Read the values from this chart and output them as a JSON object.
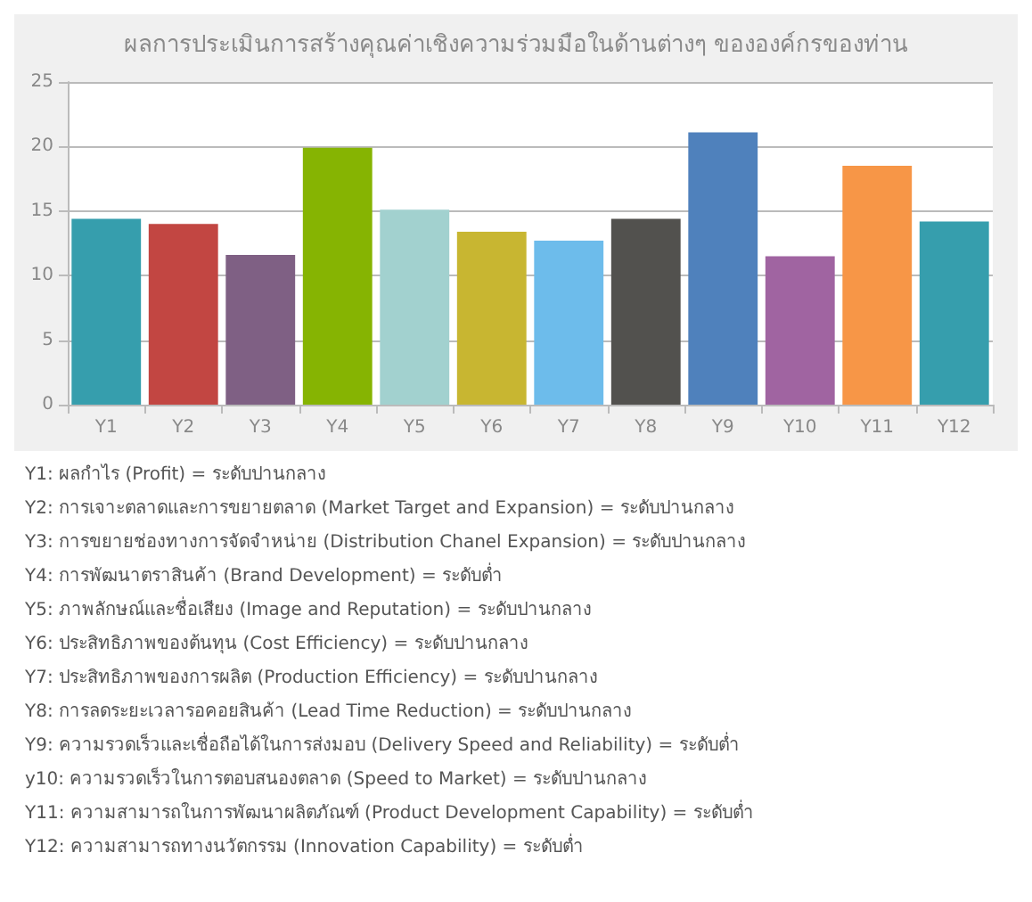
{
  "chart_data": {
    "type": "bar",
    "title": "ผลการประเมินการสร้างคุณค่าเชิงความร่วมมือในด้านต่างๆ ขององค์กรของท่าน",
    "categories": [
      "Y1",
      "Y2",
      "Y3",
      "Y4",
      "Y5",
      "Y6",
      "Y7",
      "Y8",
      "Y9",
      "Y10",
      "Y11",
      "Y12"
    ],
    "values": [
      14.4,
      14.0,
      11.6,
      19.9,
      15.1,
      13.4,
      12.7,
      14.4,
      21.1,
      11.5,
      18.5,
      14.2
    ],
    "colors": [
      "#369ead",
      "#c24642",
      "#7f6084",
      "#86b402",
      "#a2d1cf",
      "#c8b631",
      "#6dbceb",
      "#52514e",
      "#4f81bc",
      "#a064a1",
      "#f79647",
      "#369ead"
    ],
    "ylim": [
      0,
      25
    ],
    "yticks": [
      0,
      5,
      10,
      15,
      20,
      25
    ],
    "grid": "y",
    "annotations": [
      "Y1: ผลกำไร (Profit) = ระดับปานกลาง",
      "Y2: การเจาะตลาดและการขยายตลาด (Market Target and Expansion) = ระดับปานกลาง",
      "Y3: การขยายช่องทางการจัดจำหน่าย (Distribution Chanel Expansion) = ระดับปานกลาง",
      "Y4: การพัฒนาตราสินค้า (Brand Development) = ระดับต่ำ",
      "Y5: ภาพลักษณ์และชื่อเสียง (Image and Reputation) = ระดับปานกลาง",
      "Y6: ประสิทธิภาพของต้นทุน (Cost Efficiency) = ระดับปานกลาง",
      "Y7: ประสิทธิภาพของการผลิต (Production Efficiency) = ระดับปานกลาง",
      "Y8: การลดระยะเวลารอคอยสินค้า (Lead Time Reduction) = ระดับปานกลาง",
      "Y9: ความรวดเร็วและเชื่อถือได้ในการส่งมอบ (Delivery Speed and Reliability) = ระดับต่ำ",
      "y10: ความรวดเร็วในการตอบสนองตลาด (Speed to Market) = ระดับปานกลาง",
      "Y11: ความสามารถในการพัฒนาผลิตภัณฑ์ (Product Development Capability) = ระดับต่ำ",
      "Y12: ความสามารถทางนวัตกรรม (Innovation Capability) = ระดับต่ำ"
    ]
  }
}
